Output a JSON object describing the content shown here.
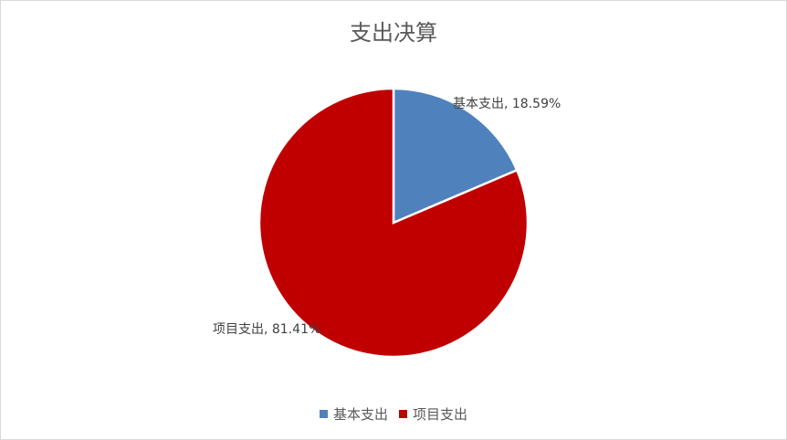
{
  "chart_data": {
    "type": "pie",
    "title": "支出决算",
    "categories": [
      "基本支出",
      "项目支出"
    ],
    "values": [
      18.59,
      81.41
    ],
    "unit": "%",
    "colors": [
      "#4f81bd",
      "#c00000"
    ],
    "data_labels": [
      "基本支出, 18.59%",
      "项目支出, 81.41%"
    ],
    "start_angle": "12 o'clock",
    "direction": "clockwise",
    "legend_position": "bottom"
  }
}
